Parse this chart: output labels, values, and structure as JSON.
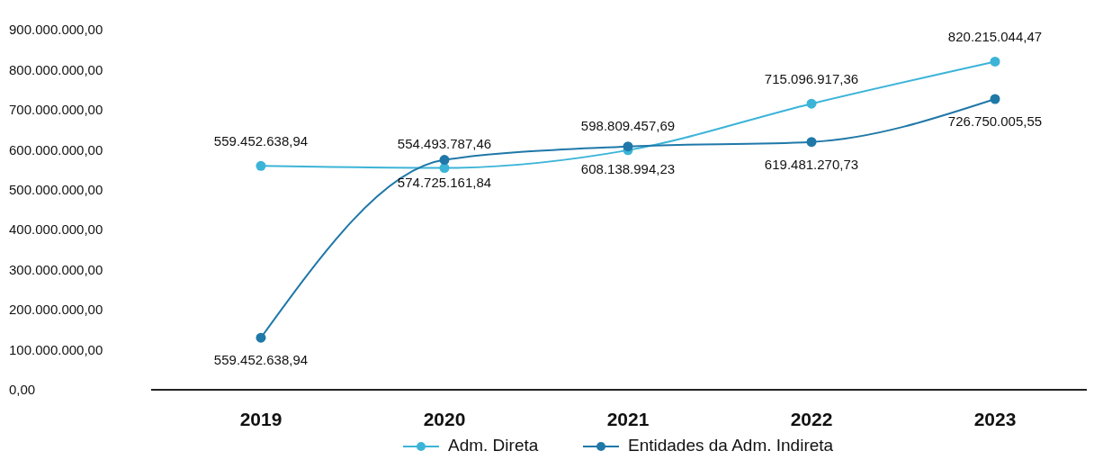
{
  "chart_data": {
    "type": "line",
    "categories": [
      "2019",
      "2020",
      "2021",
      "2022",
      "2023"
    ],
    "series": [
      {
        "name": "Adm. Direta",
        "color": "#3cb4d8",
        "values": [
          559452638.94,
          554493787.46,
          598809457.69,
          715096917.36,
          820215044.47
        ],
        "value_labels": [
          "559.452.638,94",
          "554.493.787,46",
          "598.809.457,69",
          "715.096.917,36",
          "820.215.044,47"
        ]
      },
      {
        "name": "Entidades da Adm. Indireta",
        "color": "#1f78a8",
        "values": [
          130000000,
          574725161.84,
          608138994.23,
          619481270.73,
          726750005.55
        ],
        "value_labels": [
          null,
          "574.725.161,84",
          "608.138.994,23",
          "619.481.270,73",
          "726.750.005,55"
        ]
      }
    ],
    "ylim": [
      0,
      900000000
    ],
    "yticks": [
      {
        "value": 0,
        "label": "0,00"
      },
      {
        "value": 100000000,
        "label": "100.000.000,00"
      },
      {
        "value": 200000000,
        "label": "200.000.000,00"
      },
      {
        "value": 300000000,
        "label": "300.000.000,00"
      },
      {
        "value": 400000000,
        "label": "400.000.000,00"
      },
      {
        "value": 500000000,
        "label": "500.000.000,00"
      },
      {
        "value": 600000000,
        "label": "600.000.000,00"
      },
      {
        "value": 700000000,
        "label": "700.000.000,00"
      },
      {
        "value": 800000000,
        "label": "800.000.000,00"
      },
      {
        "value": 900000000,
        "label": "900.000.000,00"
      }
    ],
    "annotations": [
      {
        "text": "559.452.638,94",
        "x": "2019",
        "y": 130000000
      }
    ],
    "grid": false,
    "legend": "bottom",
    "marker": "circle",
    "line_style": "solid"
  }
}
